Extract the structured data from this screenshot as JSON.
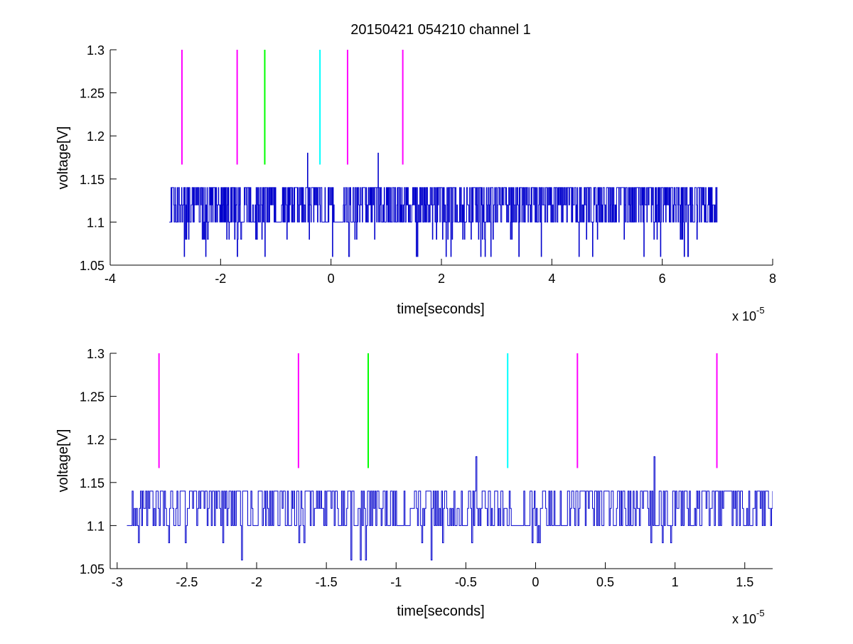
{
  "figure": {
    "title": "20150421 054210 channel 1"
  },
  "chart_data": [
    {
      "type": "line",
      "title": "20150421 054210 channel 1",
      "xlabel": "time[seconds]",
      "ylabel": "voltage[V]",
      "x_exponent_label": "x 10",
      "x_exponent_power": "-5",
      "x_scale": 1e-05,
      "xlim": [
        -4,
        8
      ],
      "ylim": [
        1.05,
        1.3
      ],
      "xticks": [
        "-4",
        "-2",
        "0",
        "2",
        "4",
        "6",
        "8"
      ],
      "xtick_values": [
        -4,
        -2,
        0,
        2,
        4,
        6,
        8
      ],
      "yticks": [
        "1.05",
        "1.1",
        "1.15",
        "1.2",
        "1.25",
        "1.3"
      ],
      "ytick_values": [
        1.05,
        1.1,
        1.15,
        1.2,
        1.25,
        1.3
      ],
      "grid": false,
      "trace": {
        "color": "#0000cc",
        "x_start": -2.93,
        "x_end": 7.0,
        "samples": 1250,
        "baseline": 1.1,
        "upper_levels": [
          1.12,
          1.14
        ],
        "lower_levels": [
          1.08,
          1.06
        ],
        "spikes": [
          {
            "x": -0.43,
            "y": 1.18
          },
          {
            "x": 0.85,
            "y": 1.18
          }
        ]
      },
      "markers": [
        {
          "x": -2.7,
          "color": "#ff00ff"
        },
        {
          "x": -1.7,
          "color": "#ff00ff"
        },
        {
          "x": -1.2,
          "color": "#00ff00"
        },
        {
          "x": -0.2,
          "color": "#00ffff"
        },
        {
          "x": 0.3,
          "color": "#ff00ff"
        },
        {
          "x": 1.3,
          "color": "#ff00ff"
        }
      ],
      "marker_y_range": [
        1.1667,
        1.3
      ]
    },
    {
      "type": "line",
      "title": "",
      "xlabel": "time[seconds]",
      "ylabel": "voltage[V]",
      "x_exponent_label": "x 10",
      "x_exponent_power": "-5",
      "x_scale": 1e-05,
      "xlim": [
        -3.05,
        1.7
      ],
      "ylim": [
        1.05,
        1.3
      ],
      "xticks": [
        "-3",
        "-2.5",
        "-2",
        "-1.5",
        "-1",
        "-0.5",
        "0",
        "0.5",
        "1",
        "1.5"
      ],
      "xtick_values": [
        -3,
        -2.5,
        -2,
        -1.5,
        -1,
        -0.5,
        0,
        0.5,
        1,
        1.5
      ],
      "yticks": [
        "1.05",
        "1.1",
        "1.15",
        "1.2",
        "1.25",
        "1.3"
      ],
      "ytick_values": [
        1.05,
        1.1,
        1.15,
        1.2,
        1.25,
        1.3
      ],
      "grid": false,
      "trace": {
        "color": "#0000cc",
        "x_start": -2.93,
        "x_end": 1.7,
        "samples": 620,
        "baseline": 1.1,
        "upper_levels": [
          1.12,
          1.14
        ],
        "lower_levels": [
          1.08,
          1.06
        ],
        "spikes": [
          {
            "x": -0.43,
            "y": 1.18
          },
          {
            "x": 0.85,
            "y": 1.18
          }
        ]
      },
      "markers": [
        {
          "x": -2.7,
          "color": "#ff00ff"
        },
        {
          "x": -1.7,
          "color": "#ff00ff"
        },
        {
          "x": -1.2,
          "color": "#00ff00"
        },
        {
          "x": -0.2,
          "color": "#00ffff"
        },
        {
          "x": 0.3,
          "color": "#ff00ff"
        },
        {
          "x": 1.3,
          "color": "#ff00ff"
        }
      ],
      "marker_y_range": [
        1.1667,
        1.3
      ]
    }
  ]
}
